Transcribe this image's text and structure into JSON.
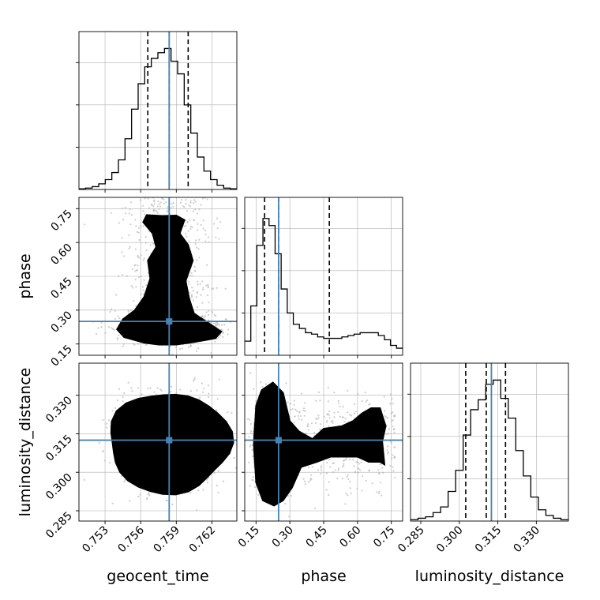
{
  "figure": {
    "xlabels": [
      "geocent_time",
      "phase",
      "luminosity_distance"
    ],
    "ylabels": [
      "phase",
      "luminosity_distance"
    ]
  },
  "colors": {
    "truth": "#4682b4",
    "line": "#000000",
    "grid": "#b0b0b0",
    "scatter": "#b8b8b8"
  },
  "chart_data": {
    "type": "corner",
    "parameters": [
      "geocent_time",
      "phase",
      "luminosity_distance"
    ],
    "truth_values": {
      "geocent_time": 0.7584,
      "phase": 0.25,
      "luminosity_distance": 0.3125
    },
    "axes": {
      "geocent_time": {
        "range": [
          0.7508,
          0.7641
        ],
        "ticks": [
          "0.753",
          "0.756",
          "0.759",
          "0.762"
        ],
        "tick_values": [
          0.753,
          0.756,
          0.759,
          0.762
        ]
      },
      "phase": {
        "range": [
          0.1,
          0.8
        ],
        "ticks": [
          "0.15",
          "0.30",
          "0.45",
          "0.60",
          "0.75"
        ],
        "tick_values": [
          0.15,
          0.3,
          0.45,
          0.6,
          0.75
        ]
      },
      "luminosity_distance": {
        "range": [
          0.281,
          0.3425
        ],
        "ticks": [
          "0.285",
          "0.300",
          "0.315",
          "0.330"
        ],
        "tick_values": [
          0.285,
          0.3,
          0.315,
          0.33
        ]
      }
    },
    "histograms": {
      "geocent_time": {
        "bins": [
          0.7508,
          0.7641
        ],
        "counts": [
          0.005,
          0.01,
          0.02,
          0.04,
          0.07,
          0.12,
          0.21,
          0.36,
          0.57,
          0.75,
          0.87,
          0.93,
          0.97,
          1.0,
          0.91,
          0.82,
          0.6,
          0.4,
          0.23,
          0.13,
          0.07,
          0.03,
          0.01,
          0.005
        ],
        "quantiles": [
          0.7566,
          0.7584,
          0.76
        ]
      },
      "phase": {
        "bins": [
          0.1,
          0.8
        ],
        "counts": [
          0.1,
          0.35,
          0.78,
          0.97,
          0.92,
          0.72,
          0.47,
          0.3,
          0.22,
          0.19,
          0.16,
          0.15,
          0.13,
          0.12,
          0.12,
          0.12,
          0.13,
          0.14,
          0.15,
          0.16,
          0.16,
          0.16,
          0.14,
          0.11,
          0.07,
          0.05
        ],
        "quantiles": [
          0.188,
          0.25,
          0.475
        ]
      },
      "luminosity_distance": {
        "bins": [
          0.281,
          0.3425
        ],
        "counts": [
          0.01,
          0.02,
          0.03,
          0.06,
          0.1,
          0.21,
          0.36,
          0.61,
          0.79,
          0.86,
          0.97,
          1.0,
          0.87,
          0.73,
          0.5,
          0.32,
          0.17,
          0.08,
          0.04,
          0.02,
          0.01
        ],
        "quantiles": [
          0.3025,
          0.3105,
          0.318
        ]
      }
    },
    "pairs": [
      {
        "x": "geocent_time",
        "y": "phase"
      },
      {
        "x": "geocent_time",
        "y": "luminosity_distance"
      },
      {
        "x": "phase",
        "y": "luminosity_distance"
      }
    ],
    "contour_levels": 4,
    "grid": true
  }
}
